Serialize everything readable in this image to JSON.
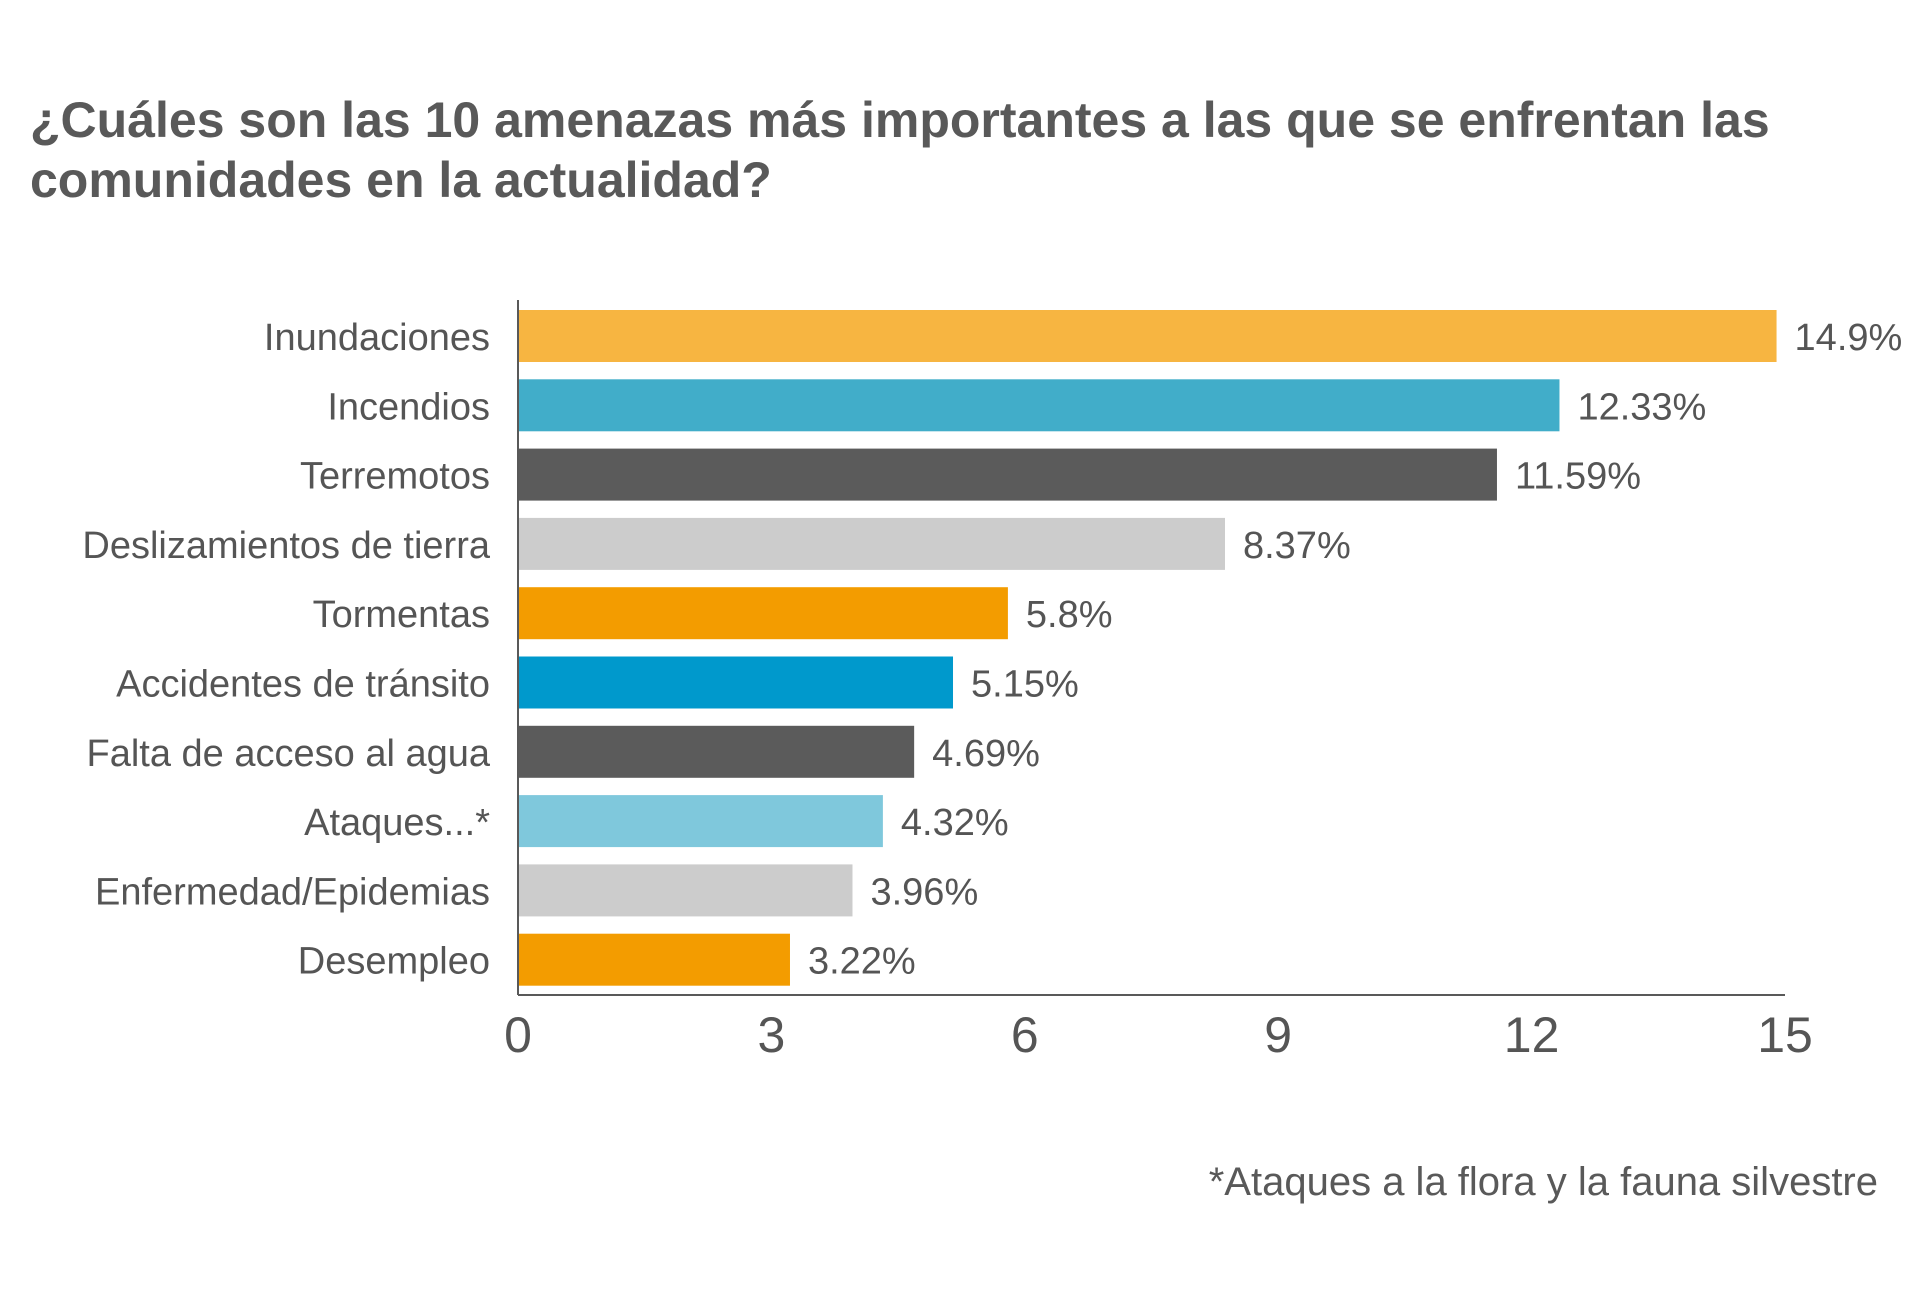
{
  "title": "¿Cuáles son las 10 amenazas más importantes a las que se enfrentan las comunidades en la actualidad?",
  "footnote": "*Ataques a la flora y la fauna silvestre",
  "chart_data": {
    "type": "bar",
    "orientation": "horizontal",
    "categories": [
      "Inundaciones",
      "Incendios",
      "Terremotos",
      "Deslizamientos de tierra",
      "Tormentas",
      "Accidentes de tránsito",
      "Falta de acceso al agua",
      "Ataques...*",
      "Enfermedad/Epidemias",
      "Desempleo"
    ],
    "values": [
      14.9,
      12.33,
      11.59,
      8.37,
      5.8,
      5.15,
      4.69,
      4.32,
      3.96,
      3.22
    ],
    "data_labels": [
      "14.9%",
      "12.33%",
      "11.59%",
      "8.37%",
      "5.8%",
      "5.15%",
      "4.69%",
      "4.32%",
      "3.96%",
      "3.22%"
    ],
    "colors": [
      "#F7B541",
      "#41ADC9",
      "#5B5B5B",
      "#CCCCCC",
      "#F39C00",
      "#0099CC",
      "#5B5B5B",
      "#7FC8DC",
      "#CCCCCC",
      "#F39C00"
    ],
    "xlim": [
      0,
      15
    ],
    "xticks": [
      "0",
      "3",
      "6",
      "9",
      "12",
      "15"
    ],
    "grid": false,
    "legend": "none",
    "xlabel": "",
    "ylabel": ""
  }
}
